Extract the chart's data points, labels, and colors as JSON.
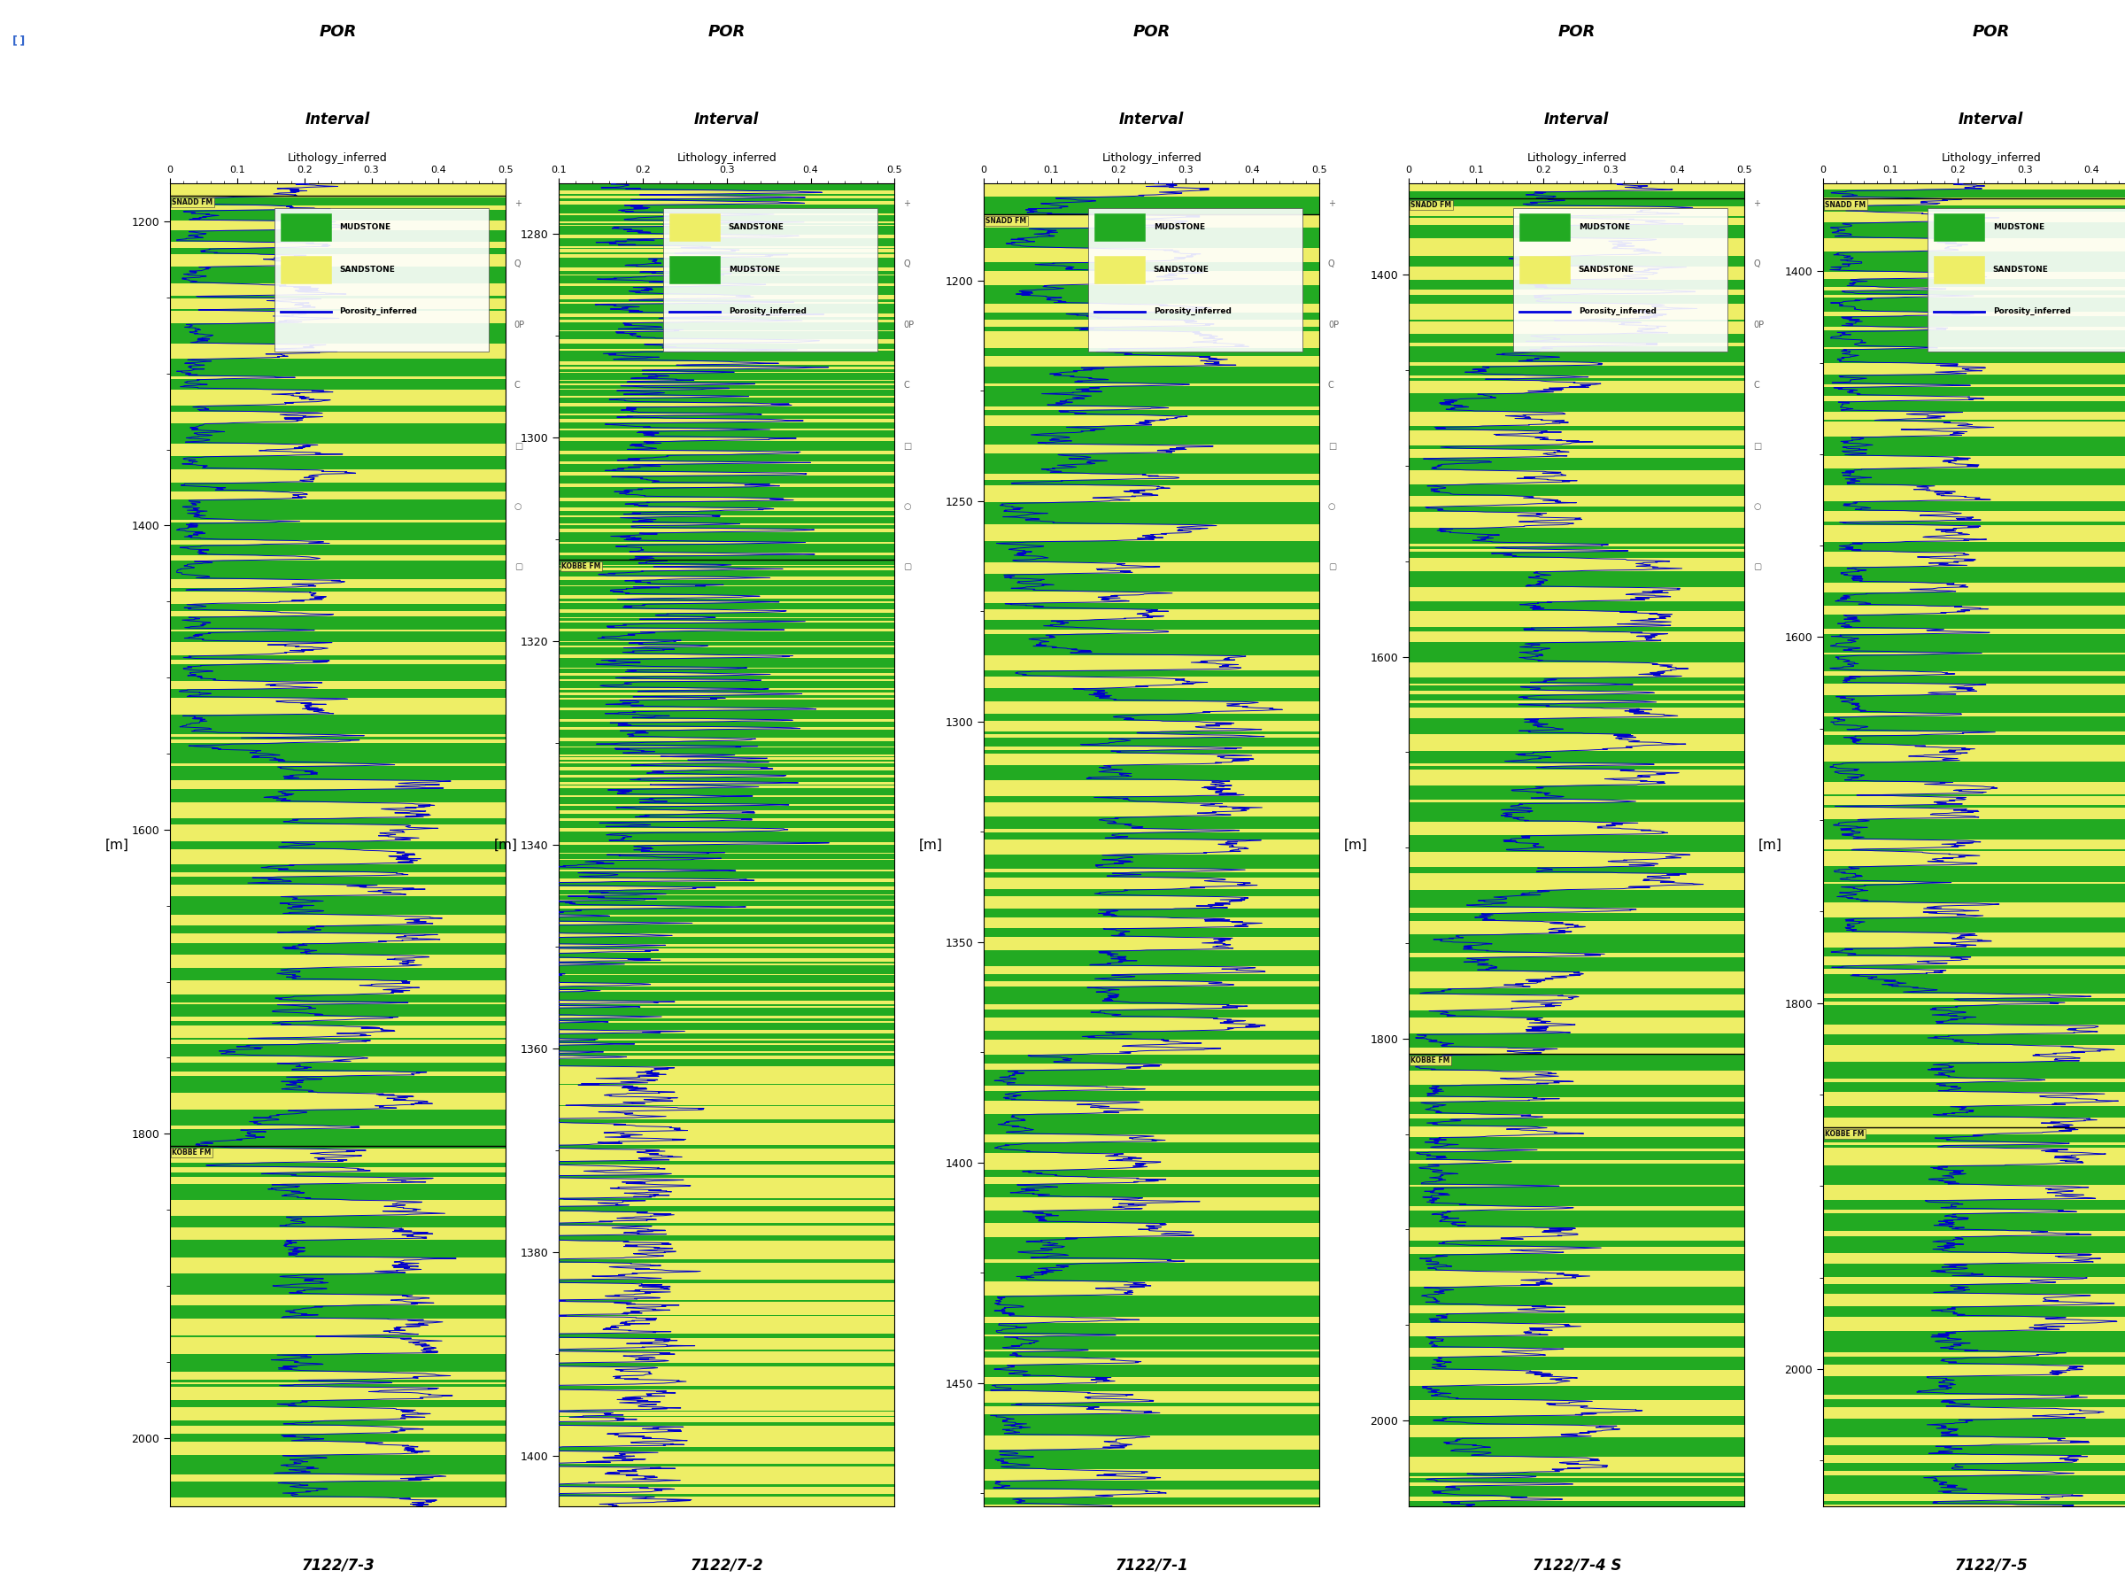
{
  "wells": [
    {
      "name": "7122/7-3",
      "depth_min": 1175,
      "depth_max": 2045,
      "por_min": 0,
      "por_max": 0.5,
      "formation_labels": [
        {
          "depth": 1183,
          "text": "SNADD FM"
        },
        {
          "depth": 1808,
          "text": "KOBBE FM"
        }
      ],
      "legend_order": [
        "MUDSTONE",
        "SANDSTONE",
        "Porosity_inferred"
      ],
      "legend_colors": [
        "#22aa22",
        "#eeee66",
        "#0000dd"
      ],
      "depth_ticks": [
        1200,
        1400,
        1600,
        1800,
        2000
      ],
      "depth_minor": 50,
      "seed": 42,
      "style": "mixed"
    },
    {
      "name": "7122/7-2",
      "depth_min": 1275,
      "depth_max": 1405,
      "por_min": 0.1,
      "por_max": 0.5,
      "formation_labels": [
        {
          "depth": 1312,
          "text": "KOBBE FM"
        }
      ],
      "legend_order": [
        "SANDSTONE",
        "MUDSTONE",
        "Porosity_inferred"
      ],
      "legend_colors": [
        "#eeee66",
        "#22aa22",
        "#0000dd"
      ],
      "depth_ticks": [
        1280,
        1300,
        1320,
        1340,
        1360,
        1380,
        1400
      ],
      "depth_minor": 10,
      "seed": 123,
      "style": "mostly_mudstone_top_sandstone_bottom"
    },
    {
      "name": "7122/7-1",
      "depth_min": 1178,
      "depth_max": 1478,
      "por_min": 0,
      "por_max": 0.5,
      "formation_labels": [
        {
          "depth": 1185,
          "text": "SNADD FM"
        }
      ],
      "legend_order": [
        "MUDSTONE",
        "SANDSTONE",
        "Porosity_inferred"
      ],
      "legend_colors": [
        "#22aa22",
        "#eeee66",
        "#0000dd"
      ],
      "depth_ticks": [
        1200,
        1250,
        1300,
        1350,
        1400,
        1450
      ],
      "depth_minor": 25,
      "seed": 456,
      "style": "mixed"
    },
    {
      "name": "7122/7-4 S",
      "depth_min": 1352,
      "depth_max": 2045,
      "por_min": 0,
      "por_max": 0.5,
      "formation_labels": [
        {
          "depth": 1360,
          "text": "SNADD FM"
        },
        {
          "depth": 1808,
          "text": "KOBBE FM"
        }
      ],
      "legend_order": [
        "MUDSTONE",
        "SANDSTONE",
        "Porosity_inferred"
      ],
      "legend_colors": [
        "#22aa22",
        "#eeee66",
        "#0000dd"
      ],
      "depth_ticks": [
        1400,
        1600,
        1800,
        2000
      ],
      "depth_minor": 50,
      "seed": 789,
      "style": "mixed"
    },
    {
      "name": "7122/7-5",
      "depth_min": 1352,
      "depth_max": 2075,
      "por_min": 0,
      "por_max": 0.5,
      "formation_labels": [
        {
          "depth": 1360,
          "text": "SNADD FM"
        },
        {
          "depth": 1868,
          "text": "KOBBE FM"
        }
      ],
      "legend_order": [
        "MUDSTONE",
        "SANDSTONE",
        "Porosity_inferred"
      ],
      "legend_colors": [
        "#22aa22",
        "#eeee66",
        "#0000dd"
      ],
      "depth_ticks": [
        1400,
        1600,
        1800,
        2000
      ],
      "depth_minor": 50,
      "seed": 1011,
      "style": "mixed"
    }
  ],
  "por_label": "POR",
  "interval_label": "Interval",
  "litho_label": "Lithology_inferred",
  "ylabel": "[m]",
  "sandstone_color": "#eeee66",
  "mudstone_color": "#22aa22",
  "por_line_color": "#0000cc",
  "background_color": "#ffffff"
}
